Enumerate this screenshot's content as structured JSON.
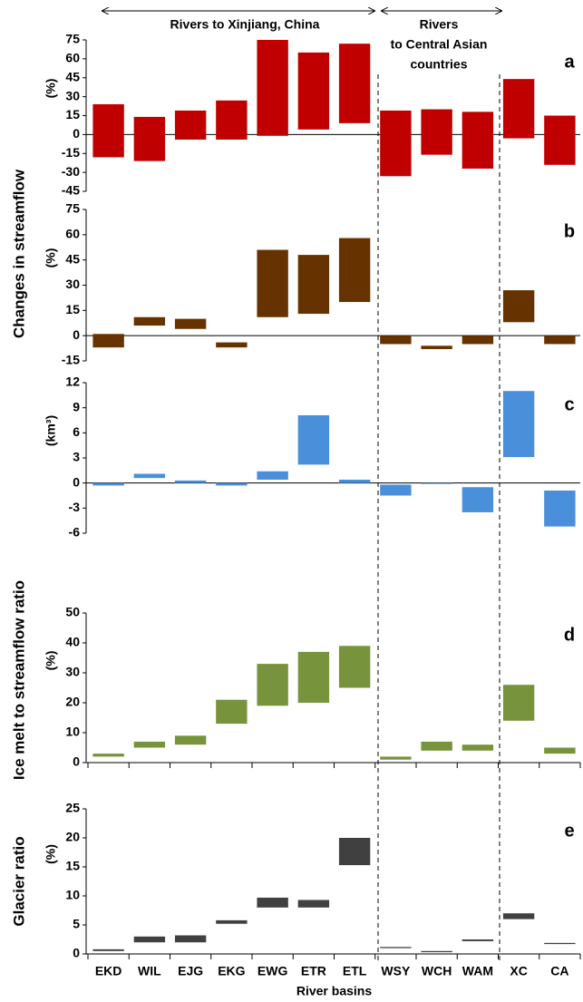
{
  "annotations": {
    "group1": "Rivers to Xinjiang, China",
    "group2": [
      "Rivers",
      "to Central Asian",
      "countries"
    ]
  },
  "side_labels": [
    "Changes in streamflow",
    "Ice melt to streamflow ratio",
    "Glacier ratio"
  ],
  "chart_data": [
    {
      "type": "bar",
      "panel_label": "a",
      "ylabel": "(%)",
      "color": "#c00000",
      "ylim": [
        -45,
        75
      ],
      "yticks": [
        -45,
        -30,
        -15,
        0,
        15,
        30,
        45,
        60,
        75
      ],
      "low": [
        -18,
        -21,
        -4,
        -4,
        -1,
        4,
        9,
        -33,
        -16,
        -27,
        -3,
        -24
      ],
      "high": [
        24,
        14,
        19,
        27,
        75,
        65,
        72,
        19,
        20,
        18,
        44,
        15
      ]
    },
    {
      "type": "bar",
      "panel_label": "b",
      "ylabel": "(%)",
      "color": "#663300",
      "ylim": [
        -15,
        75
      ],
      "yticks": [
        -15,
        0,
        15,
        30,
        45,
        60,
        75
      ],
      "low": [
        -7,
        6,
        4,
        -7,
        11,
        13,
        20,
        -5,
        -8,
        -5,
        8,
        -5
      ],
      "high": [
        1,
        11,
        10,
        -4,
        51,
        48,
        58,
        0,
        -6,
        0,
        27,
        0
      ]
    },
    {
      "type": "bar",
      "panel_label": "c",
      "ylabel": "(km³)",
      "color": "#4a8fd9",
      "ylim": [
        -6,
        12
      ],
      "yticks": [
        -6,
        -3,
        0,
        3,
        6,
        9,
        12
      ],
      "low": [
        -0.3,
        0.6,
        0,
        -0.3,
        0.4,
        2.2,
        0,
        -1.5,
        -0.1,
        -3.5,
        3.1,
        -5.2
      ],
      "high": [
        0,
        1.1,
        0.3,
        0,
        1.4,
        8.1,
        0.4,
        -0.2,
        0,
        -0.5,
        11,
        -0.9
      ]
    },
    {
      "type": "bar",
      "panel_label": "d",
      "ylabel": "(%)",
      "color": "#77933c",
      "ylim": [
        0,
        50
      ],
      "yticks": [
        0,
        10,
        20,
        30,
        40,
        50
      ],
      "low": [
        2,
        5,
        6,
        13,
        19,
        20,
        25,
        1,
        4,
        4,
        14,
        3
      ],
      "high": [
        3,
        7,
        9,
        21,
        33,
        37,
        39,
        2,
        7,
        6,
        26,
        5
      ]
    },
    {
      "type": "bar",
      "panel_label": "e",
      "ylabel": "(%)",
      "color": "#404040",
      "ylim": [
        0,
        25
      ],
      "yticks": [
        0,
        5,
        10,
        15,
        20,
        25
      ],
      "low": [
        0.5,
        2,
        2,
        5.2,
        8,
        8,
        15.3,
        1,
        0.3,
        2.2,
        6,
        1.7
      ],
      "high": [
        0.8,
        3,
        3.2,
        5.8,
        9.7,
        9.3,
        20,
        1.2,
        0.5,
        2.5,
        7,
        1.9
      ],
      "categories": [
        "EKD",
        "WIL",
        "EJG",
        "EKG",
        "EWG",
        "ETR",
        "ETL",
        "WSY",
        "WCH",
        "WAM",
        "XC",
        "CA"
      ],
      "xlabel": "River basins"
    }
  ]
}
